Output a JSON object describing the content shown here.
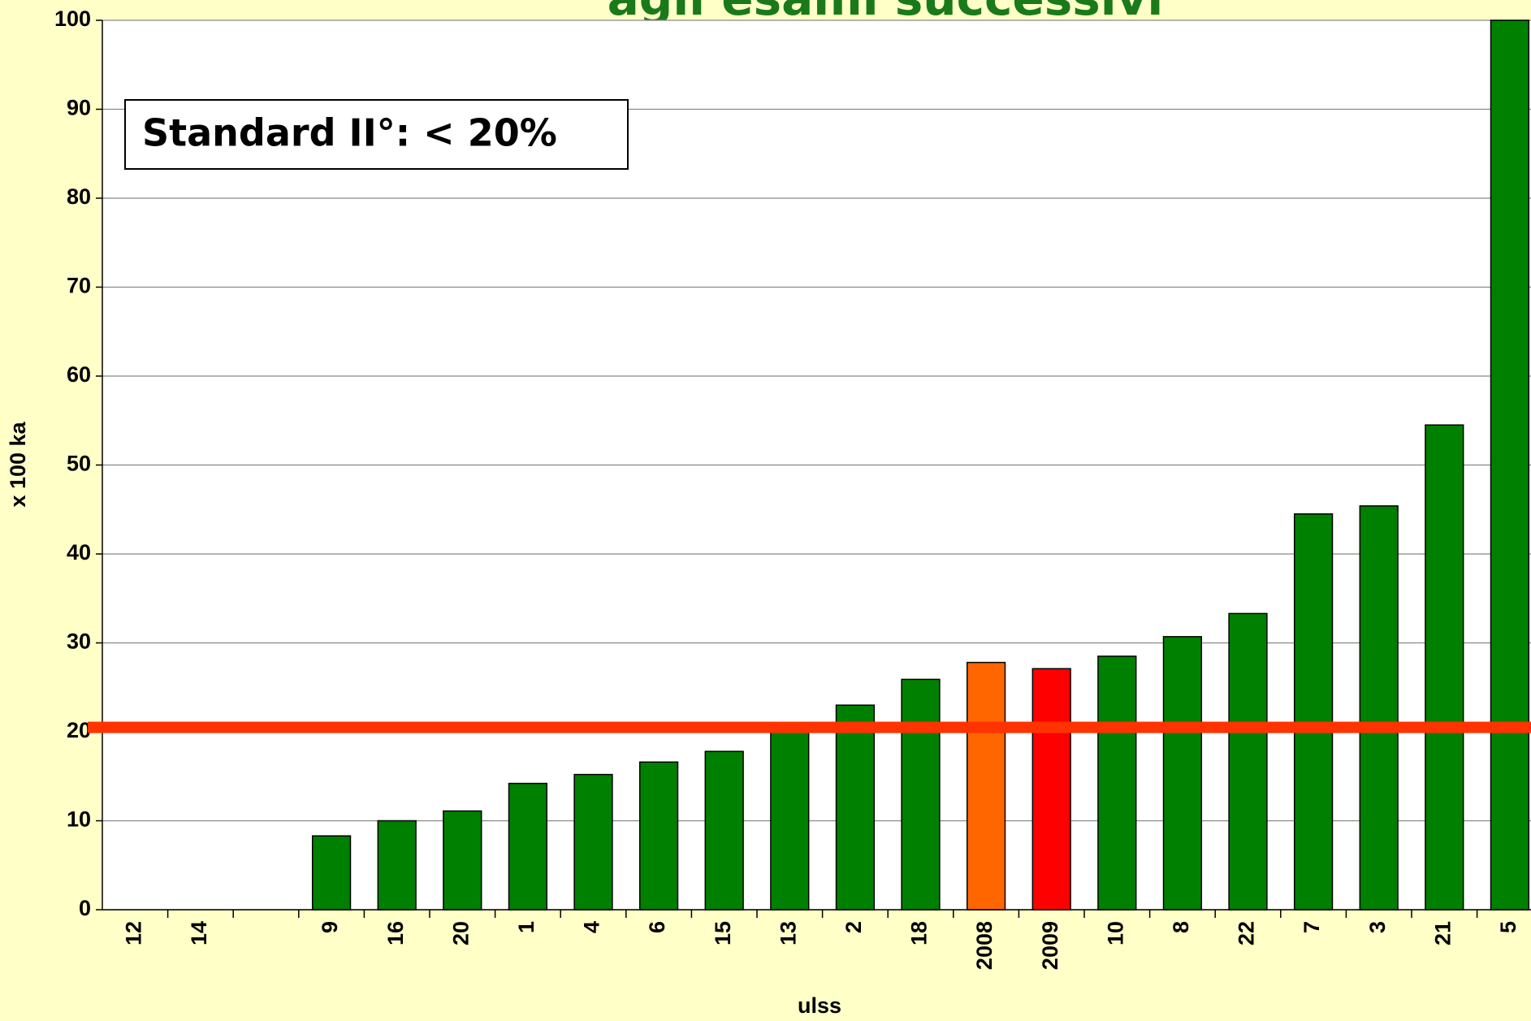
{
  "chart_data": {
    "type": "bar",
    "title": "agli esami successivi",
    "annotation": "Standard II°: < 20%",
    "x_label": "ulss",
    "y_label": "x 100 ka",
    "categories": [
      "12",
      "14",
      null,
      "9",
      "16",
      "20",
      "1",
      "4",
      "6",
      "15",
      "13",
      "2",
      "18",
      "2008",
      "2009",
      "10",
      "8",
      "22",
      "7",
      "3",
      "21",
      "5"
    ],
    "values": [
      0,
      0,
      null,
      8.3,
      10,
      11.1,
      14.2,
      15.2,
      16.6,
      17.8,
      20.5,
      23,
      25.9,
      27.8,
      27.1,
      28.5,
      30.7,
      33.3,
      44.5,
      45.4,
      54.5,
      100
    ],
    "colors": [
      "#008000",
      "#008000",
      "#008000",
      "#008000",
      "#008000",
      "#008000",
      "#008000",
      "#008000",
      "#008000",
      "#008000",
      "#008000",
      "#008000",
      "#008000",
      "#ff6600",
      "#ff0000",
      "#008000",
      "#008000",
      "#008000",
      "#008000",
      "#008000",
      "#008000",
      "#008000"
    ],
    "reference_line": {
      "value": 20.5,
      "color": "#ff3300"
    },
    "ylim": [
      0,
      100
    ],
    "yticks": [
      0,
      10,
      20,
      30,
      40,
      50,
      60,
      70,
      80,
      90,
      100
    ],
    "grid": true
  }
}
